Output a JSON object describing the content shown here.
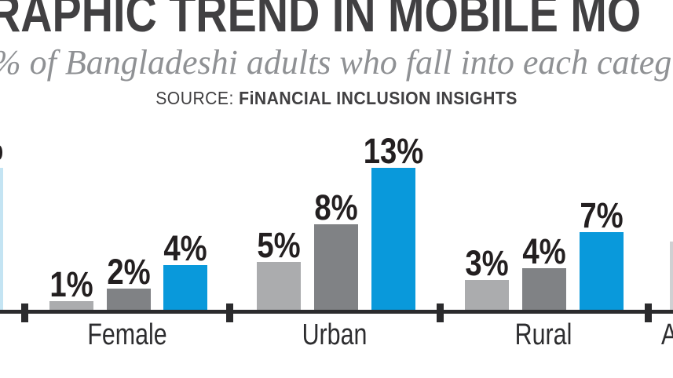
{
  "title": {
    "visible_text": "RAPHIC TREND IN MOBILE MO"
  },
  "subtitle": {
    "visible_text": "% of Bangladeshi adults who fall into each categ"
  },
  "source": {
    "prefix": "SOURCE: ",
    "name": "FiNANCIAL INCLUSION INSIGHTS"
  },
  "colors": {
    "accent_blue": "#0999db",
    "light_gray": "#abacae",
    "dark_gray": "#808285",
    "axis": "#2b2b2d",
    "value_label": "#231f20",
    "title": "#414042",
    "subtitle": "#8f9194",
    "edge_bar_left": "#c4e4f3",
    "edge_bar_right": "#cfd0d2"
  },
  "chart_data": {
    "type": "bar",
    "unit": "%",
    "title": "RAPHIC TREND IN MOBILE MO",
    "subtitle": "% of Bangladeshi adults who fall into each categ",
    "source": "SOURCE: FiNANCIAL INCLUSION INSIGHTS",
    "categories": [
      "Female",
      "Urban",
      "Rural"
    ],
    "series": [
      {
        "name": "series-light-gray",
        "color": "#abacae",
        "values": [
          1,
          5,
          3
        ]
      },
      {
        "name": "series-dark-gray",
        "color": "#808285",
        "values": [
          2,
          8,
          4
        ]
      },
      {
        "name": "series-blue",
        "color": "#0999db",
        "values": [
          4,
          13,
          7
        ]
      }
    ],
    "grid": false,
    "legend": "none",
    "value_label_format": "{value}%",
    "partials": {
      "left_value_label": "%",
      "left_bar_color": "#c4e4f3",
      "right_category_label": "A",
      "right_bar_color": "#cfd0d2"
    }
  }
}
